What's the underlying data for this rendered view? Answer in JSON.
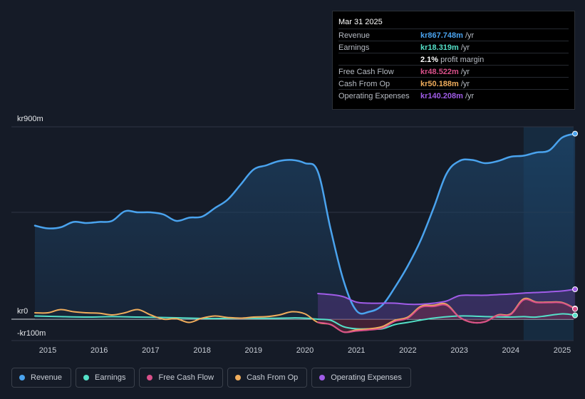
{
  "tooltip": {
    "date": "Mar 31 2025",
    "rows": [
      {
        "label": "Revenue",
        "value": "kr867.748m",
        "unit": "/yr",
        "color": "#4aa3ee"
      },
      {
        "label": "Earnings",
        "value": "kr18.319m",
        "unit": "/yr",
        "color": "#54e0c8"
      },
      {
        "label": "",
        "value": "2.1%",
        "unit": "profit margin",
        "color": "#ffffff"
      },
      {
        "label": "Free Cash Flow",
        "value": "kr48.522m",
        "unit": "/yr",
        "color": "#d9508a"
      },
      {
        "label": "Cash From Op",
        "value": "kr50.188m",
        "unit": "/yr",
        "color": "#f0ad5c"
      },
      {
        "label": "Operating Expenses",
        "value": "kr140.208m",
        "unit": "/yr",
        "color": "#a05ce8"
      }
    ]
  },
  "legend": [
    {
      "label": "Revenue",
      "color": "#4aa3ee"
    },
    {
      "label": "Earnings",
      "color": "#54e0c8"
    },
    {
      "label": "Free Cash Flow",
      "color": "#d9508a"
    },
    {
      "label": "Cash From Op",
      "color": "#f0ad5c"
    },
    {
      "label": "Operating Expenses",
      "color": "#a05ce8"
    }
  ],
  "chart_data": {
    "type": "line",
    "title": "",
    "xlabel": "",
    "ylabel": "",
    "ylim": [
      -100,
      900
    ],
    "y_tick_labels": [
      "kr900m",
      "kr0",
      "-kr100m"
    ],
    "y_ticks": [
      900,
      0,
      -100
    ],
    "x_ticks": [
      2015,
      2016,
      2017,
      2018,
      2019,
      2020,
      2021,
      2022,
      2023,
      2024,
      2025
    ],
    "x_tick_labels": [
      "2015",
      "2016",
      "2017",
      "2018",
      "2019",
      "2020",
      "2021",
      "2022",
      "2023",
      "2024",
      "2025"
    ],
    "xlim": [
      2014.5,
      2025.25
    ],
    "highlight_from": 2024.25,
    "series": [
      {
        "name": "Revenue",
        "color": "#4aa3ee",
        "fill": true,
        "x": [
          2014.75,
          2015.0,
          2015.25,
          2015.5,
          2015.75,
          2016.0,
          2016.25,
          2016.5,
          2016.75,
          2017.0,
          2017.25,
          2017.5,
          2017.75,
          2018.0,
          2018.25,
          2018.5,
          2018.75,
          2019.0,
          2019.25,
          2019.5,
          2019.75,
          2020.0,
          2020.25,
          2020.5,
          2020.75,
          2021.0,
          2021.25,
          2021.5,
          2021.75,
          2022.0,
          2022.25,
          2022.5,
          2022.75,
          2023.0,
          2023.25,
          2023.5,
          2023.75,
          2024.0,
          2024.25,
          2024.5,
          2024.75,
          2025.0,
          2025.25
        ],
        "y": [
          438,
          425,
          430,
          455,
          450,
          455,
          460,
          505,
          500,
          500,
          490,
          460,
          475,
          480,
          520,
          560,
          630,
          700,
          720,
          740,
          745,
          730,
          690,
          420,
          180,
          40,
          35,
          65,
          150,
          250,
          370,
          520,
          680,
          740,
          745,
          730,
          740,
          760,
          765,
          780,
          790,
          850,
          868
        ]
      },
      {
        "name": "Operating Expenses",
        "color": "#a05ce8",
        "fill": true,
        "x": [
          2020.25,
          2020.5,
          2020.75,
          2021.0,
          2021.25,
          2021.5,
          2021.75,
          2022.0,
          2022.25,
          2022.5,
          2022.75,
          2023.0,
          2023.25,
          2023.5,
          2023.75,
          2024.0,
          2024.25,
          2024.5,
          2024.75,
          2025.0,
          2025.25
        ],
        "y": [
          120,
          115,
          105,
          80,
          75,
          75,
          75,
          70,
          70,
          75,
          85,
          110,
          112,
          112,
          115,
          118,
          122,
          125,
          128,
          132,
          140
        ]
      },
      {
        "name": "Earnings",
        "color": "#54e0c8",
        "fill": false,
        "x": [
          2014.75,
          2015.25,
          2015.75,
          2016.25,
          2016.75,
          2017.25,
          2017.75,
          2018.25,
          2018.75,
          2019.25,
          2019.75,
          2020.0,
          2020.25,
          2020.5,
          2020.75,
          2021.0,
          2021.25,
          2021.5,
          2021.75,
          2022.0,
          2022.5,
          2023.0,
          2023.5,
          2024.0,
          2024.25,
          2024.5,
          2025.0,
          2025.25
        ],
        "y": [
          15,
          12,
          10,
          12,
          10,
          8,
          5,
          3,
          5,
          4,
          6,
          5,
          0,
          -5,
          -35,
          -45,
          -45,
          -45,
          -25,
          -15,
          5,
          15,
          12,
          10,
          12,
          10,
          25,
          18
        ]
      },
      {
        "name": "Cash From Op",
        "color": "#f0ad5c",
        "fill": false,
        "x": [
          2014.75,
          2015.0,
          2015.25,
          2015.5,
          2015.75,
          2016.0,
          2016.25,
          2016.5,
          2016.75,
          2017.0,
          2017.25,
          2017.5,
          2017.75,
          2018.0,
          2018.25,
          2018.5,
          2018.75,
          2019.0,
          2019.25,
          2019.5,
          2019.75,
          2020.0,
          2020.25,
          2020.5,
          2020.75,
          2021.0,
          2021.25,
          2021.5,
          2021.75,
          2022.0,
          2022.25,
          2022.5,
          2022.75,
          2023.0,
          2023.25,
          2023.5,
          2023.75,
          2024.0,
          2024.25,
          2024.5,
          2024.75,
          2025.0,
          2025.25
        ],
        "y": [
          30,
          30,
          45,
          35,
          30,
          28,
          20,
          30,
          45,
          20,
          0,
          2,
          -15,
          5,
          15,
          8,
          5,
          10,
          12,
          20,
          35,
          25,
          -15,
          -25,
          -60,
          -50,
          -45,
          -35,
          -5,
          10,
          60,
          65,
          70,
          10,
          -15,
          -12,
          20,
          25,
          95,
          80,
          80,
          78,
          50
        ]
      },
      {
        "name": "Free Cash Flow",
        "color": "#d9508a",
        "fill": false,
        "x": [
          2020.25,
          2020.5,
          2020.75,
          2021.0,
          2021.25,
          2021.5,
          2021.75,
          2022.0,
          2022.25,
          2022.5,
          2022.75,
          2023.0,
          2023.25,
          2023.5,
          2023.75,
          2024.0,
          2024.25,
          2024.5,
          2024.75,
          2025.0,
          2025.25
        ],
        "y": [
          -15,
          -25,
          -60,
          -55,
          -50,
          -42,
          -10,
          5,
          55,
          60,
          65,
          10,
          -15,
          -12,
          18,
          22,
          90,
          78,
          78,
          76,
          48
        ]
      }
    ]
  }
}
